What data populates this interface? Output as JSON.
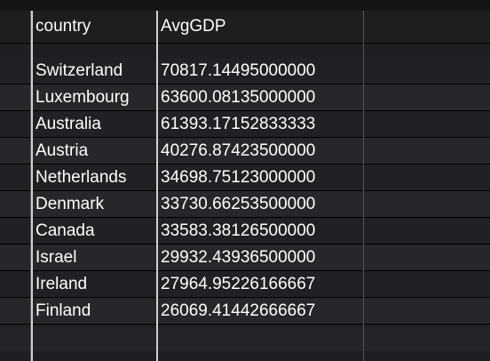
{
  "table": {
    "columns": [
      {
        "label": "country"
      },
      {
        "label": "AvgGDP"
      }
    ],
    "rows": [
      {
        "country": "Switzerland",
        "avg_gdp": "70817.14495000000"
      },
      {
        "country": "Luxembourg",
        "avg_gdp": "63600.08135000000"
      },
      {
        "country": "Australia",
        "avg_gdp": "61393.17152833333"
      },
      {
        "country": "Austria",
        "avg_gdp": "40276.87423500000"
      },
      {
        "country": "Netherlands",
        "avg_gdp": "34698.75123000000"
      },
      {
        "country": "Denmark",
        "avg_gdp": "33730.66253500000"
      },
      {
        "country": "Canada",
        "avg_gdp": "33583.38126500000"
      },
      {
        "country": "Israel",
        "avg_gdp": "29932.43936500000"
      },
      {
        "country": "Ireland",
        "avg_gdp": "27964.95226166667"
      },
      {
        "country": "Finland",
        "avg_gdp": "26069.41442666667"
      }
    ]
  }
}
